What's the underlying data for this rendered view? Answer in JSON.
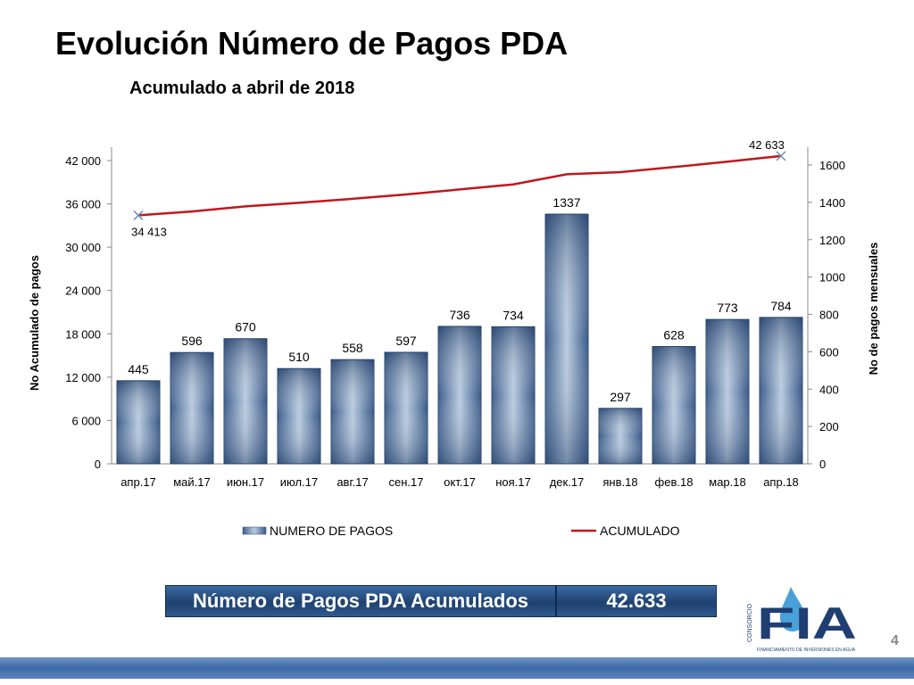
{
  "page": {
    "title": "Evolución Número de Pagos PDA",
    "subtitle": "Acumulado a abril de 2018",
    "page_number": "4"
  },
  "summary": {
    "label": "Número de Pagos PDA Acumulados",
    "value": "42.633"
  },
  "logo": {
    "vertical_text": "CONSORCIO",
    "letters": "FIA",
    "tagline": "FINANCIAMIENTO DE INVERSIONES EN AGUA"
  },
  "colors": {
    "bar": "#4a6a96",
    "bar_light": "#b9cbe0",
    "line": "#c0171c",
    "bottom_bar": "#4472c4"
  },
  "chart_data": {
    "type": "bar",
    "categories": [
      "апр.17",
      "май.17",
      "июн.17",
      "июл.17",
      "авг.17",
      "сен.17",
      "окт.17",
      "ноя.17",
      "дек.17",
      "янв.18",
      "фев.18",
      "мар.18",
      "апр.18"
    ],
    "series": [
      {
        "name": "NUMERO DE PAGOS",
        "type": "bar",
        "axis": "right",
        "values": [
          445,
          596,
          670,
          510,
          558,
          597,
          736,
          734,
          1337,
          297,
          628,
          773,
          784
        ],
        "data_labels": [
          "445",
          "596",
          "670",
          "510",
          "558",
          "597",
          "736",
          "734",
          "1337",
          "297",
          "628",
          "773",
          "784"
        ]
      },
      {
        "name": "ACUMULADO",
        "type": "line",
        "axis": "left",
        "values": [
          34413,
          34950,
          35650,
          36150,
          36700,
          37300,
          38000,
          38700,
          40100,
          40400,
          41100,
          41850,
          42633
        ],
        "data_labels": [
          "34 413",
          "",
          "",
          "",
          "",
          "",
          "",
          "",
          "",
          "",
          "",
          "",
          "42 633"
        ]
      }
    ],
    "left_axis": {
      "label": "No Acumulado de pagos",
      "min": 0,
      "max": 42000,
      "ticks": [
        0,
        6000,
        12000,
        18000,
        24000,
        30000,
        36000,
        42000
      ],
      "tick_labels": [
        "0",
        "6 000",
        "12 000",
        "18 000",
        "24 000",
        "30 000",
        "36 000",
        "42 000"
      ]
    },
    "right_axis": {
      "label": "No de pagos mensuales",
      "min": 0,
      "max": 1600,
      "ticks": [
        0,
        200,
        400,
        600,
        800,
        1000,
        1200,
        1400,
        1600
      ],
      "tick_labels": [
        "0",
        "200",
        "400",
        "600",
        "800",
        "1000",
        "1200",
        "1400",
        "1600"
      ]
    },
    "legend": {
      "position": "bottom",
      "entries": [
        "NUMERO DE PAGOS",
        "ACUMULADO"
      ]
    },
    "grid": false
  }
}
